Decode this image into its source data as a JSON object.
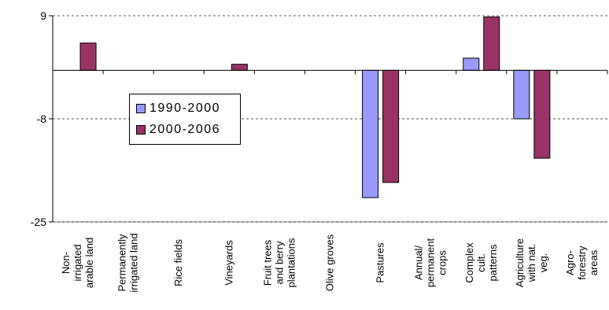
{
  "chart_data": {
    "type": "bar",
    "categories": [
      "Non-irrigated arable land",
      "Permanently irrigated land",
      "Rice fields",
      "Vineyards",
      "Fruit trees and berry plantations",
      "Olive groves",
      "Pastures",
      "Annual/ permanent crops",
      "Complex cult. patterns",
      "Agriculture with nat. veg.",
      "Agro-forestry areas"
    ],
    "category_lines": [
      [
        "Non-",
        "irrigated",
        "arable land"
      ],
      [
        "Permanently",
        "irrigated land"
      ],
      [
        "Rice fields"
      ],
      [
        "Vineyards"
      ],
      [
        "Fruit trees",
        "and berry",
        "plantations"
      ],
      [
        "Olive groves"
      ],
      [
        "Pastures"
      ],
      [
        "Annual/",
        "permanent",
        "crops"
      ],
      [
        "Complex",
        "cult.",
        "patterns"
      ],
      [
        "Agriculture",
        "with nat.",
        "veg."
      ],
      [
        "Agro-",
        "forestry",
        "areas"
      ]
    ],
    "series": [
      {
        "name": "1990-2000",
        "color": "#9999ff",
        "values": [
          0,
          0,
          0,
          0,
          0,
          0,
          -21,
          0,
          2,
          -8,
          0
        ]
      },
      {
        "name": "2000-2006",
        "color": "#993366",
        "values": [
          4.5,
          0,
          0,
          1,
          0,
          0,
          -18.5,
          0,
          8.8,
          -14.5,
          0
        ]
      }
    ],
    "ylim": [
      -25,
      9
    ],
    "yticks": [
      9,
      -8,
      -25
    ],
    "ytick_labels": [
      "9",
      "-8",
      "-25"
    ],
    "grid": "horizontal dashed",
    "legend_position": "left-center"
  }
}
